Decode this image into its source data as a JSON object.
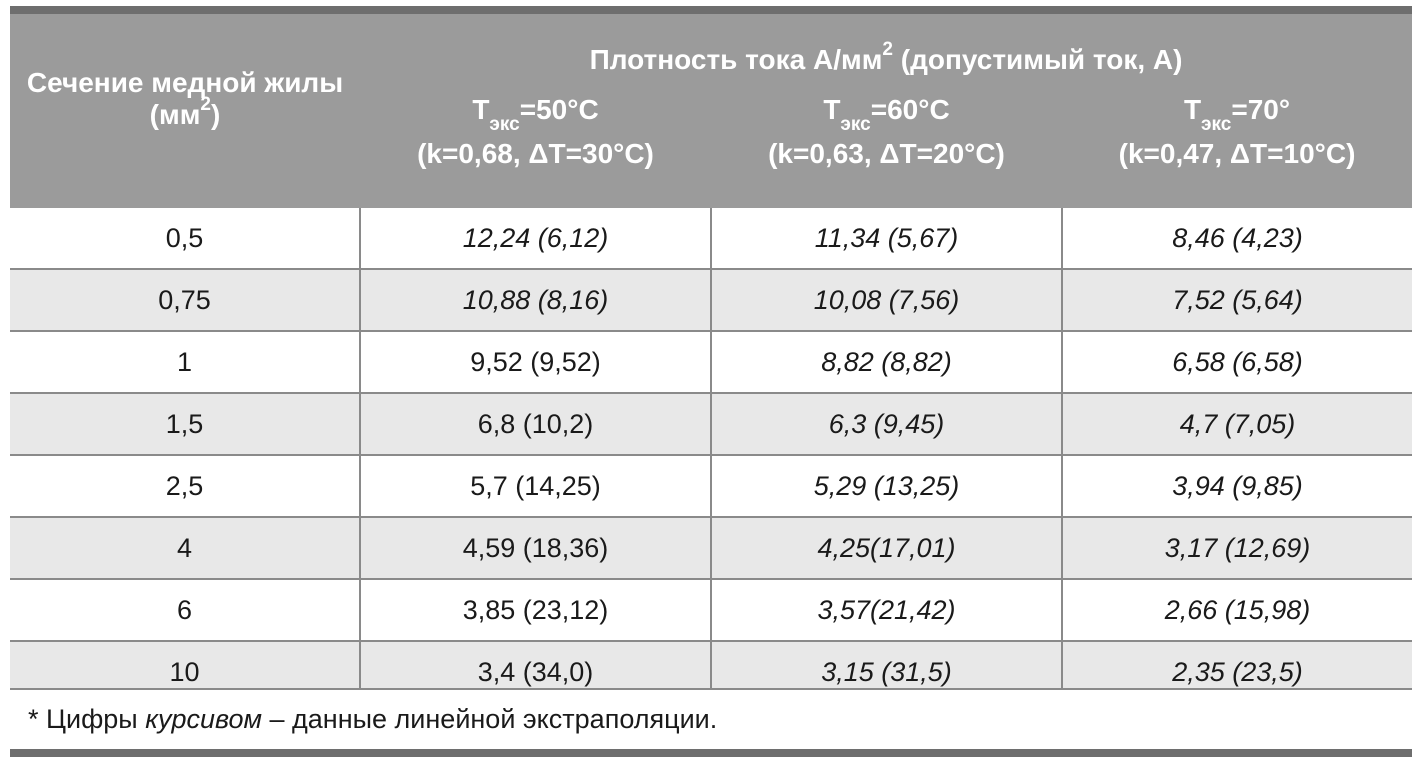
{
  "header": {
    "rowhead_line1": "Сечение медной жилы",
    "rowhead_line2_pre": "(мм",
    "rowhead_line2_sup": "2",
    "rowhead_line2_post": ")",
    "group_pre": "Плотность тока А/мм",
    "group_sup": "2",
    "group_post": " (допустимый ток, А)",
    "columns": [
      {
        "t": "Т",
        "sub": "экс",
        "temp": "=50°С",
        "params": "(k=0,68, ΔT=30°C)"
      },
      {
        "t": "Т",
        "sub": "экс",
        "temp": "=60°С",
        "params": "(k=0,63, ΔT=20°C)"
      },
      {
        "t": "Т",
        "sub": "экс",
        "temp": "=70°",
        "params": "(k=0,47, ΔT=10°C)"
      }
    ]
  },
  "rows": [
    {
      "section": "0,5",
      "cells": [
        "12,24 (6,12)",
        "11,34 (5,67)",
        "8,46 (4,23)"
      ]
    },
    {
      "section": "0,75",
      "cells": [
        "10,88 (8,16)",
        "10,08 (7,56)",
        "7,52 (5,64)"
      ]
    },
    {
      "section": "1",
      "cells": [
        "9,52 (9,52)",
        "8,82 (8,82)",
        "6,58 (6,58)"
      ]
    },
    {
      "section": "1,5",
      "cells": [
        "6,8 (10,2)",
        "6,3 (9,45)",
        "4,7 (7,05)"
      ]
    },
    {
      "section": "2,5",
      "cells": [
        "5,7 (14,25)",
        "5,29 (13,25)",
        "3,94 (9,85)"
      ]
    },
    {
      "section": "4",
      "cells": [
        "4,59 (18,36)",
        "4,25(17,01)",
        "3,17 (12,69)"
      ]
    },
    {
      "section": "6",
      "cells": [
        "3,85 (23,12)",
        "3,57(21,42)",
        "2,66 (15,98)"
      ]
    },
    {
      "section": "10",
      "cells": [
        "3,4 (34,0)",
        "3,15 (31,5)",
        "2,35 (23,5)"
      ]
    }
  ],
  "note": {
    "pre": "* Цифры ",
    "em": "курсивом",
    "post": " – данные линейной экстраполяции."
  }
}
